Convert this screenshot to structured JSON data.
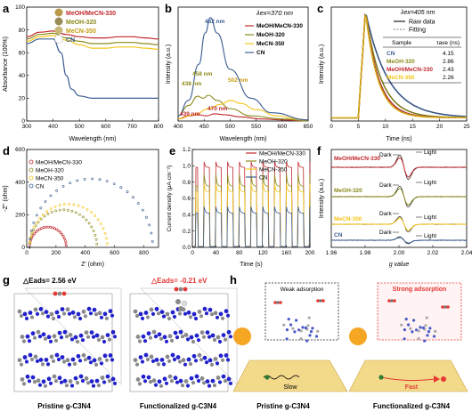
{
  "colors": {
    "red": "#c0282d",
    "olive": "#8c8a1c",
    "yellow": "#f5c518",
    "blue": "#3b5d91",
    "blue_atom": "#2222cc",
    "grey_atom": "#8a8a8a",
    "substrate": "#f3d98a",
    "sun": "#f5a623"
  },
  "chart_data": [
    {
      "panel": "a",
      "type": "line",
      "xlabel": "Wavelength (nm)",
      "ylabel": "Absorbance (100%)",
      "xlim": [
        300,
        800
      ],
      "ylim": [
        0,
        100
      ],
      "xticks": [
        "300",
        "400",
        "500",
        "600",
        "700",
        "800"
      ],
      "yticks": [
        "0",
        "20",
        "40",
        "60",
        "80",
        "100"
      ],
      "legend": [
        "MeOH/MeCN-330",
        "MeOH-320",
        "MeCN-350",
        "CN"
      ],
      "series": [
        {
          "name": "MeOH/MeCN-330",
          "color": "red",
          "x": [
            300,
            350,
            400,
            450,
            500,
            550,
            600,
            650,
            700,
            750,
            800
          ],
          "y": [
            74,
            78,
            79,
            76,
            74,
            73,
            73,
            74,
            74,
            73,
            72
          ]
        },
        {
          "name": "MeOH-320",
          "color": "olive",
          "x": [
            300,
            350,
            400,
            450,
            500,
            550,
            600,
            650,
            700,
            750,
            800
          ],
          "y": [
            72,
            76,
            77,
            73,
            70,
            68,
            68,
            69,
            69,
            68,
            67
          ]
        },
        {
          "name": "MeCN-350",
          "color": "yellow",
          "x": [
            300,
            350,
            400,
            450,
            500,
            550,
            600,
            650,
            700,
            750,
            800
          ],
          "y": [
            70,
            74,
            75,
            71,
            67,
            64,
            64,
            65,
            65,
            64,
            63
          ]
        },
        {
          "name": "CN",
          "color": "blue",
          "x": [
            300,
            350,
            400,
            430,
            450,
            470,
            500,
            550,
            600,
            700,
            800
          ],
          "y": [
            68,
            72,
            72,
            60,
            40,
            28,
            22,
            20,
            20,
            20,
            20
          ]
        }
      ]
    },
    {
      "panel": "b",
      "type": "line",
      "title": "λex=370 nm",
      "xlabel": "Wavelength (nm)",
      "ylabel": "Intensity (a.u.)",
      "xlim": [
        400,
        650
      ],
      "xticks": [
        "400",
        "450",
        "500",
        "550",
        "600",
        "650"
      ],
      "legend": [
        "MeOH/MeCN-330",
        "MeOH-320",
        "MeCN-350",
        "CN"
      ],
      "annotations": [
        "462 nm",
        "458 nm",
        "438 nm",
        "502 nm",
        "470 nm",
        "439 nm"
      ],
      "series": [
        {
          "name": "MeOH/MeCN-330",
          "color": "red",
          "x": [
            400,
            420,
            439,
            455,
            470,
            490,
            520,
            560,
            600,
            650
          ],
          "y": [
            0.02,
            0.05,
            0.06,
            0.05,
            0.07,
            0.06,
            0.04,
            0.02,
            0.01,
            0.0
          ]
        },
        {
          "name": "MeOH-320",
          "color": "olive",
          "x": [
            400,
            420,
            438,
            448,
            458,
            475,
            500,
            540,
            600,
            650
          ],
          "y": [
            0.05,
            0.15,
            0.24,
            0.22,
            0.25,
            0.2,
            0.12,
            0.05,
            0.02,
            0.0
          ]
        },
        {
          "name": "MeCN-350",
          "color": "yellow",
          "x": [
            400,
            430,
            460,
            480,
            502,
            520,
            550,
            590,
            630,
            650
          ],
          "y": [
            0.02,
            0.06,
            0.12,
            0.16,
            0.2,
            0.17,
            0.11,
            0.05,
            0.02,
            0.01
          ]
        },
        {
          "name": "CN",
          "color": "blue",
          "x": [
            400,
            420,
            440,
            452,
            462,
            475,
            500,
            540,
            580,
            650
          ],
          "y": [
            0.05,
            0.2,
            0.55,
            0.85,
            1.0,
            0.85,
            0.5,
            0.22,
            0.08,
            0.01
          ]
        }
      ]
    },
    {
      "panel": "c",
      "type": "line",
      "title": "λex=405 nm",
      "xlabel": "Time (ns)",
      "ylabel": "Intensity (a.u.)",
      "xlim": [
        0,
        25
      ],
      "xticks": [
        "0",
        "5",
        "10",
        "15",
        "20",
        "25"
      ],
      "legend": [
        "Raw data",
        "Fitting"
      ],
      "table": {
        "header": [
          "Sample",
          "τave (ns)"
        ],
        "rows": [
          {
            "sample": "CN",
            "tau": "4.15",
            "color": "blue"
          },
          {
            "sample": "MeOH-320",
            "tau": "2.86",
            "color": "olive"
          },
          {
            "sample": "MeOH/MeCN-330",
            "tau": "2.43",
            "color": "red"
          },
          {
            "sample": "MeCN-350",
            "tau": "2.26",
            "color": "yellow"
          }
        ]
      }
    },
    {
      "panel": "d",
      "type": "scatter",
      "xlabel": "Z' (ohm)",
      "ylabel": "-Z'' (ohm)",
      "xlim": [
        0,
        900
      ],
      "ylim": [
        0,
        600
      ],
      "xticks": [
        "0",
        "200",
        "400",
        "600",
        "800"
      ],
      "yticks": [
        "0",
        "200",
        "400",
        "600"
      ],
      "legend": [
        "MeOH/MeCN-330",
        "MeOH-320",
        "MeCN-350",
        "CN"
      ],
      "series": [
        {
          "name": "MeOH/MeCN-330",
          "color": "red",
          "center": 145,
          "radius": 125
        },
        {
          "name": "MeOH-320",
          "color": "olive",
          "center": 250,
          "radius": 230
        },
        {
          "name": "MeCN-350",
          "color": "yellow",
          "center": 285,
          "radius": 265
        },
        {
          "name": "CN",
          "color": "blue",
          "center": 440,
          "radius": 420
        }
      ]
    },
    {
      "panel": "e",
      "type": "line",
      "xlabel": "Time (s)",
      "ylabel": "Current density (μA·cm⁻²)",
      "xlim": [
        0,
        200
      ],
      "ylim": [
        0.0,
        1.2
      ],
      "xticks": [
        "0",
        "40",
        "80",
        "120",
        "160",
        "200"
      ],
      "yticks": [
        "0.0",
        "0.2",
        "0.4",
        "0.6",
        "0.8",
        "1.0",
        "1.2"
      ],
      "legend": [
        "MeOH/MeCN-330",
        "MeOH-320",
        "MeCN-350",
        "CN"
      ],
      "period_s": 20,
      "series": [
        {
          "name": "MeOH/MeCN-330",
          "color": "red",
          "peak": 1.05,
          "plateau": 0.98
        },
        {
          "name": "MeOH-320",
          "color": "olive",
          "peak": 0.9,
          "plateau": 0.75
        },
        {
          "name": "MeCN-350",
          "color": "yellow",
          "peak": 0.78,
          "plateau": 0.68
        },
        {
          "name": "CN",
          "color": "blue",
          "peak": 0.5,
          "plateau": 0.42
        }
      ]
    },
    {
      "panel": "f",
      "type": "line",
      "xlabel": "g value",
      "ylabel": "Intensity (a.u.)",
      "xlim": [
        1.96,
        2.04
      ],
      "xticks": [
        "1.96",
        "1.98",
        "2.00",
        "2.02",
        "2.04"
      ],
      "series_labels": [
        "MeOH/MeCN-330",
        "MeOH-320",
        "MeCN-350",
        "CN"
      ],
      "markers": [
        "Dark",
        "Light"
      ]
    }
  ],
  "panel_labels": [
    "a",
    "b",
    "c",
    "d",
    "e",
    "f",
    "g",
    "h"
  ],
  "g": {
    "left_energy": "△Eads= 2.56 eV",
    "right_energy": "△Eads= -0.21 eV",
    "left_caption": "Pristine g-C3N4",
    "right_caption": "Functionalized g-C3N4"
  },
  "h": {
    "weak_label": "Weak adsorption",
    "strong_label": "Strong adsorption",
    "slow_label": "Slow",
    "fast_label": "Fast",
    "left_caption": "Pristine g-C3N4",
    "right_caption": "Functionalized g-C3N4"
  }
}
